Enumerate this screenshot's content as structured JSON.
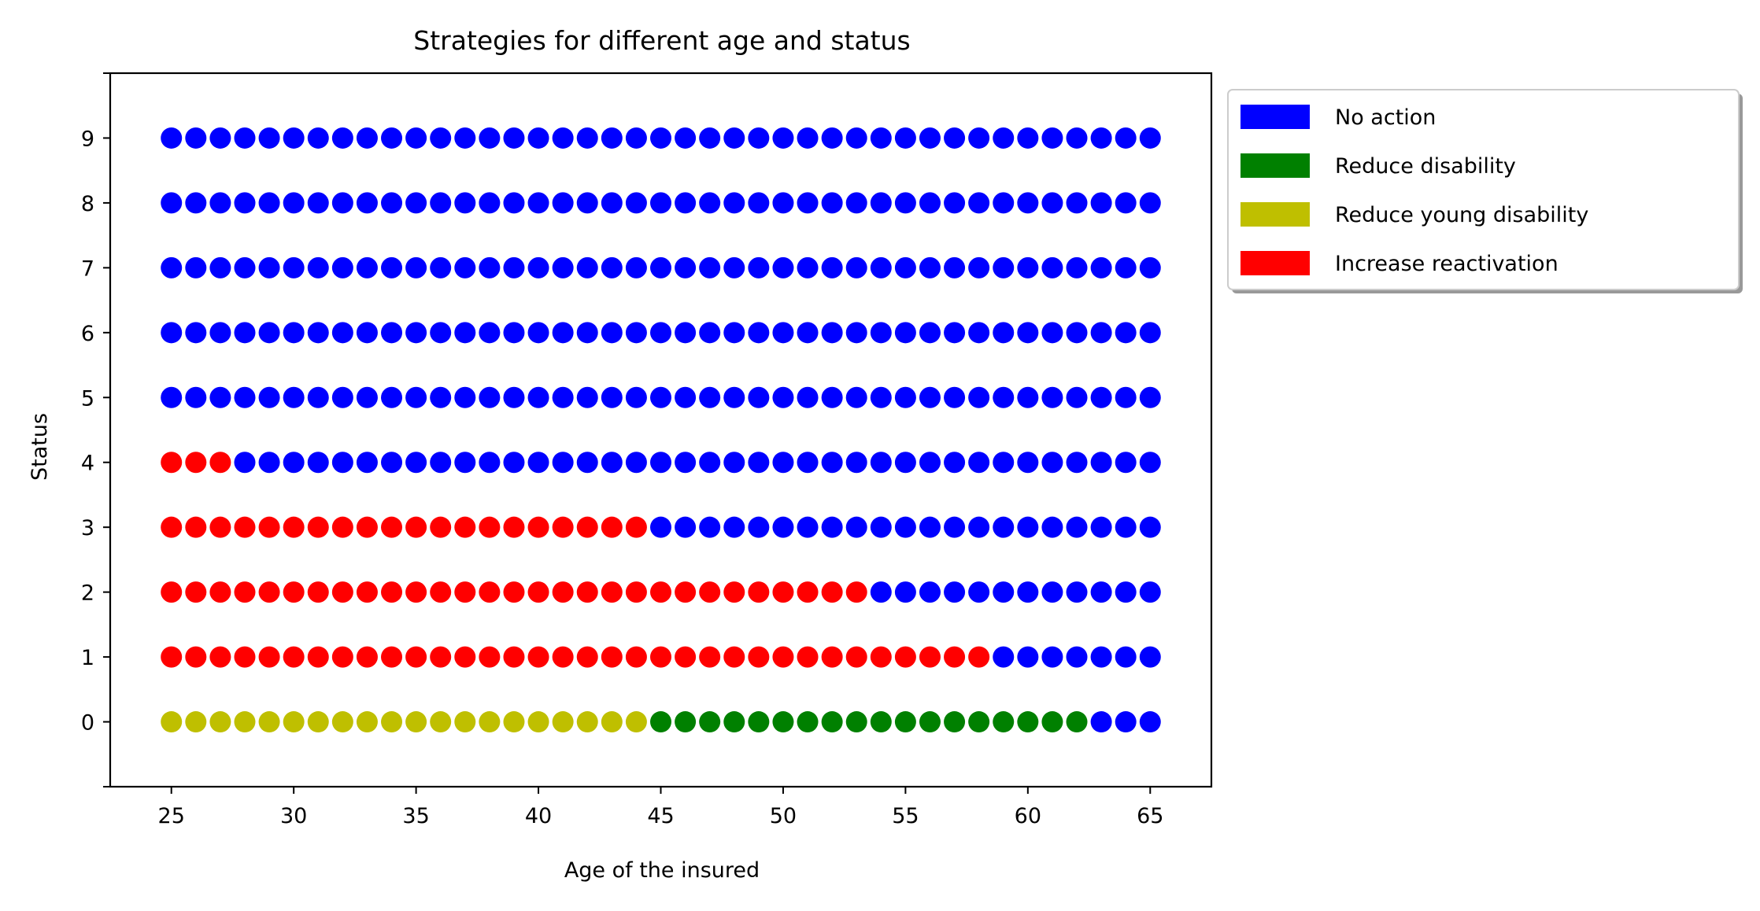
{
  "chart_data": {
    "type": "scatter",
    "title": "Strategies for different age and status",
    "xlabel": "Age of the insured",
    "ylabel": "Status",
    "xlim": [
      22.5,
      67.5
    ],
    "ylim": [
      -1,
      10
    ],
    "xticks": [
      25,
      30,
      35,
      40,
      45,
      50,
      55,
      60,
      65
    ],
    "yticks": [
      0,
      1,
      2,
      3,
      4,
      5,
      6,
      7,
      8,
      9
    ],
    "grid": false,
    "legend_position": "outside upper right",
    "x_age_range": [
      25,
      65
    ],
    "series": [
      {
        "name": "No action",
        "color": "#0000ff",
        "segments": [
          {
            "status": 0,
            "from_age": 63,
            "to_age": 65
          },
          {
            "status": 1,
            "from_age": 59,
            "to_age": 65
          },
          {
            "status": 2,
            "from_age": 54,
            "to_age": 65
          },
          {
            "status": 3,
            "from_age": 45,
            "to_age": 65
          },
          {
            "status": 4,
            "from_age": 28,
            "to_age": 65
          },
          {
            "status": 5,
            "from_age": 25,
            "to_age": 65
          },
          {
            "status": 6,
            "from_age": 25,
            "to_age": 65
          },
          {
            "status": 7,
            "from_age": 25,
            "to_age": 65
          },
          {
            "status": 8,
            "from_age": 25,
            "to_age": 65
          },
          {
            "status": 9,
            "from_age": 25,
            "to_age": 65
          }
        ]
      },
      {
        "name": "Reduce disability",
        "color": "#008000",
        "segments": [
          {
            "status": 0,
            "from_age": 45,
            "to_age": 62
          }
        ]
      },
      {
        "name": "Reduce young disability",
        "color": "#bfbf00",
        "segments": [
          {
            "status": 0,
            "from_age": 25,
            "to_age": 44
          }
        ]
      },
      {
        "name": "Increase reactivation",
        "color": "#ff0000",
        "segments": [
          {
            "status": 1,
            "from_age": 25,
            "to_age": 58
          },
          {
            "status": 2,
            "from_age": 25,
            "to_age": 53
          },
          {
            "status": 3,
            "from_age": 25,
            "to_age": 44
          },
          {
            "status": 4,
            "from_age": 25,
            "to_age": 27
          }
        ]
      }
    ]
  }
}
